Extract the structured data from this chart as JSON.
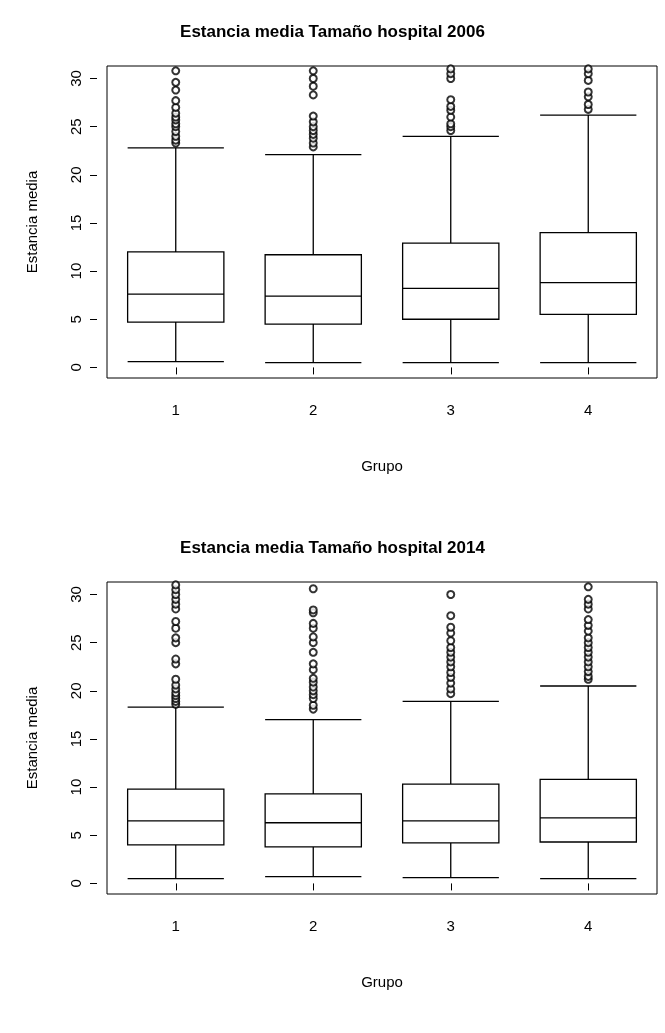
{
  "chart_data": [
    {
      "type": "box",
      "title": "Estancia media Tamaño hospital 2006",
      "xlabel": "Grupo",
      "ylabel": "Estancia media",
      "categories": [
        "1",
        "2",
        "3",
        "4"
      ],
      "ylim": [
        -1.1,
        31.3
      ],
      "yticks": [
        0,
        5,
        10,
        15,
        20,
        25,
        30
      ],
      "grid": false,
      "boxes": [
        {
          "low": 0.6,
          "q1": 4.7,
          "median": 7.6,
          "q3": 12.0,
          "high": 22.8,
          "outliers": [
            23.3,
            23.6,
            24,
            24.5,
            25,
            25.3,
            25.7,
            26,
            26.4,
            27,
            27.7,
            28.8,
            29.6,
            30.8
          ]
        },
        {
          "low": 0.5,
          "q1": 4.5,
          "median": 7.4,
          "q3": 11.7,
          "high": 22.1,
          "outliers": [
            22.9,
            23.3,
            23.8,
            24.2,
            24.6,
            25,
            25.5,
            26.1,
            28.3,
            29.2,
            30,
            30.8
          ]
        },
        {
          "low": 0.5,
          "q1": 5.0,
          "median": 8.2,
          "q3": 12.9,
          "high": 24.0,
          "outliers": [
            24.6,
            25,
            25.3,
            26,
            26.7,
            27.1,
            27.8,
            30,
            30.5,
            31
          ]
        },
        {
          "low": 0.5,
          "q1": 5.5,
          "median": 8.8,
          "q3": 14.0,
          "high": 26.2,
          "outliers": [
            26.8,
            27.3,
            28.1,
            28.6,
            29.8,
            30.5,
            31
          ]
        }
      ]
    },
    {
      "type": "box",
      "title": "Estancia media Tamaño hospital 2014",
      "xlabel": "Grupo",
      "ylabel": "Estancia media",
      "categories": [
        "1",
        "2",
        "3",
        "4"
      ],
      "ylim": [
        -1.1,
        31.3
      ],
      "yticks": [
        0,
        5,
        10,
        15,
        20,
        25,
        30
      ],
      "grid": false,
      "boxes": [
        {
          "low": 0.5,
          "q1": 4.0,
          "median": 6.5,
          "q3": 9.8,
          "high": 18.3,
          "outliers": [
            18.6,
            18.9,
            19.2,
            19.5,
            19.8,
            20.2,
            20.6,
            21.2,
            22.8,
            23.3,
            25,
            25.5,
            26.5,
            27.2,
            28.5,
            29,
            29.5,
            30,
            30.5,
            31
          ]
        },
        {
          "low": 0.7,
          "q1": 3.8,
          "median": 6.3,
          "q3": 9.3,
          "high": 17.0,
          "outliers": [
            18.1,
            18.5,
            19.2,
            19.6,
            20,
            20.4,
            20.9,
            21.3,
            22.2,
            22.8,
            24,
            25,
            25.6,
            26.5,
            27,
            28.1,
            28.4,
            30.6
          ]
        },
        {
          "low": 0.6,
          "q1": 4.2,
          "median": 6.5,
          "q3": 10.3,
          "high": 18.9,
          "outliers": [
            19.7,
            20.2,
            20.8,
            21.4,
            21.9,
            22.5,
            23,
            23.5,
            24,
            24.5,
            25.2,
            26,
            26.6,
            27.8,
            30
          ]
        },
        {
          "low": 0.5,
          "q1": 4.3,
          "median": 6.8,
          "q3": 10.8,
          "high": 20.5,
          "outliers": [
            21.2,
            21.5,
            22,
            22.5,
            23,
            23.5,
            24,
            24.5,
            25,
            25.5,
            26.2,
            26.8,
            27.4,
            28.5,
            29,
            29.5,
            30.8
          ]
        }
      ]
    }
  ]
}
